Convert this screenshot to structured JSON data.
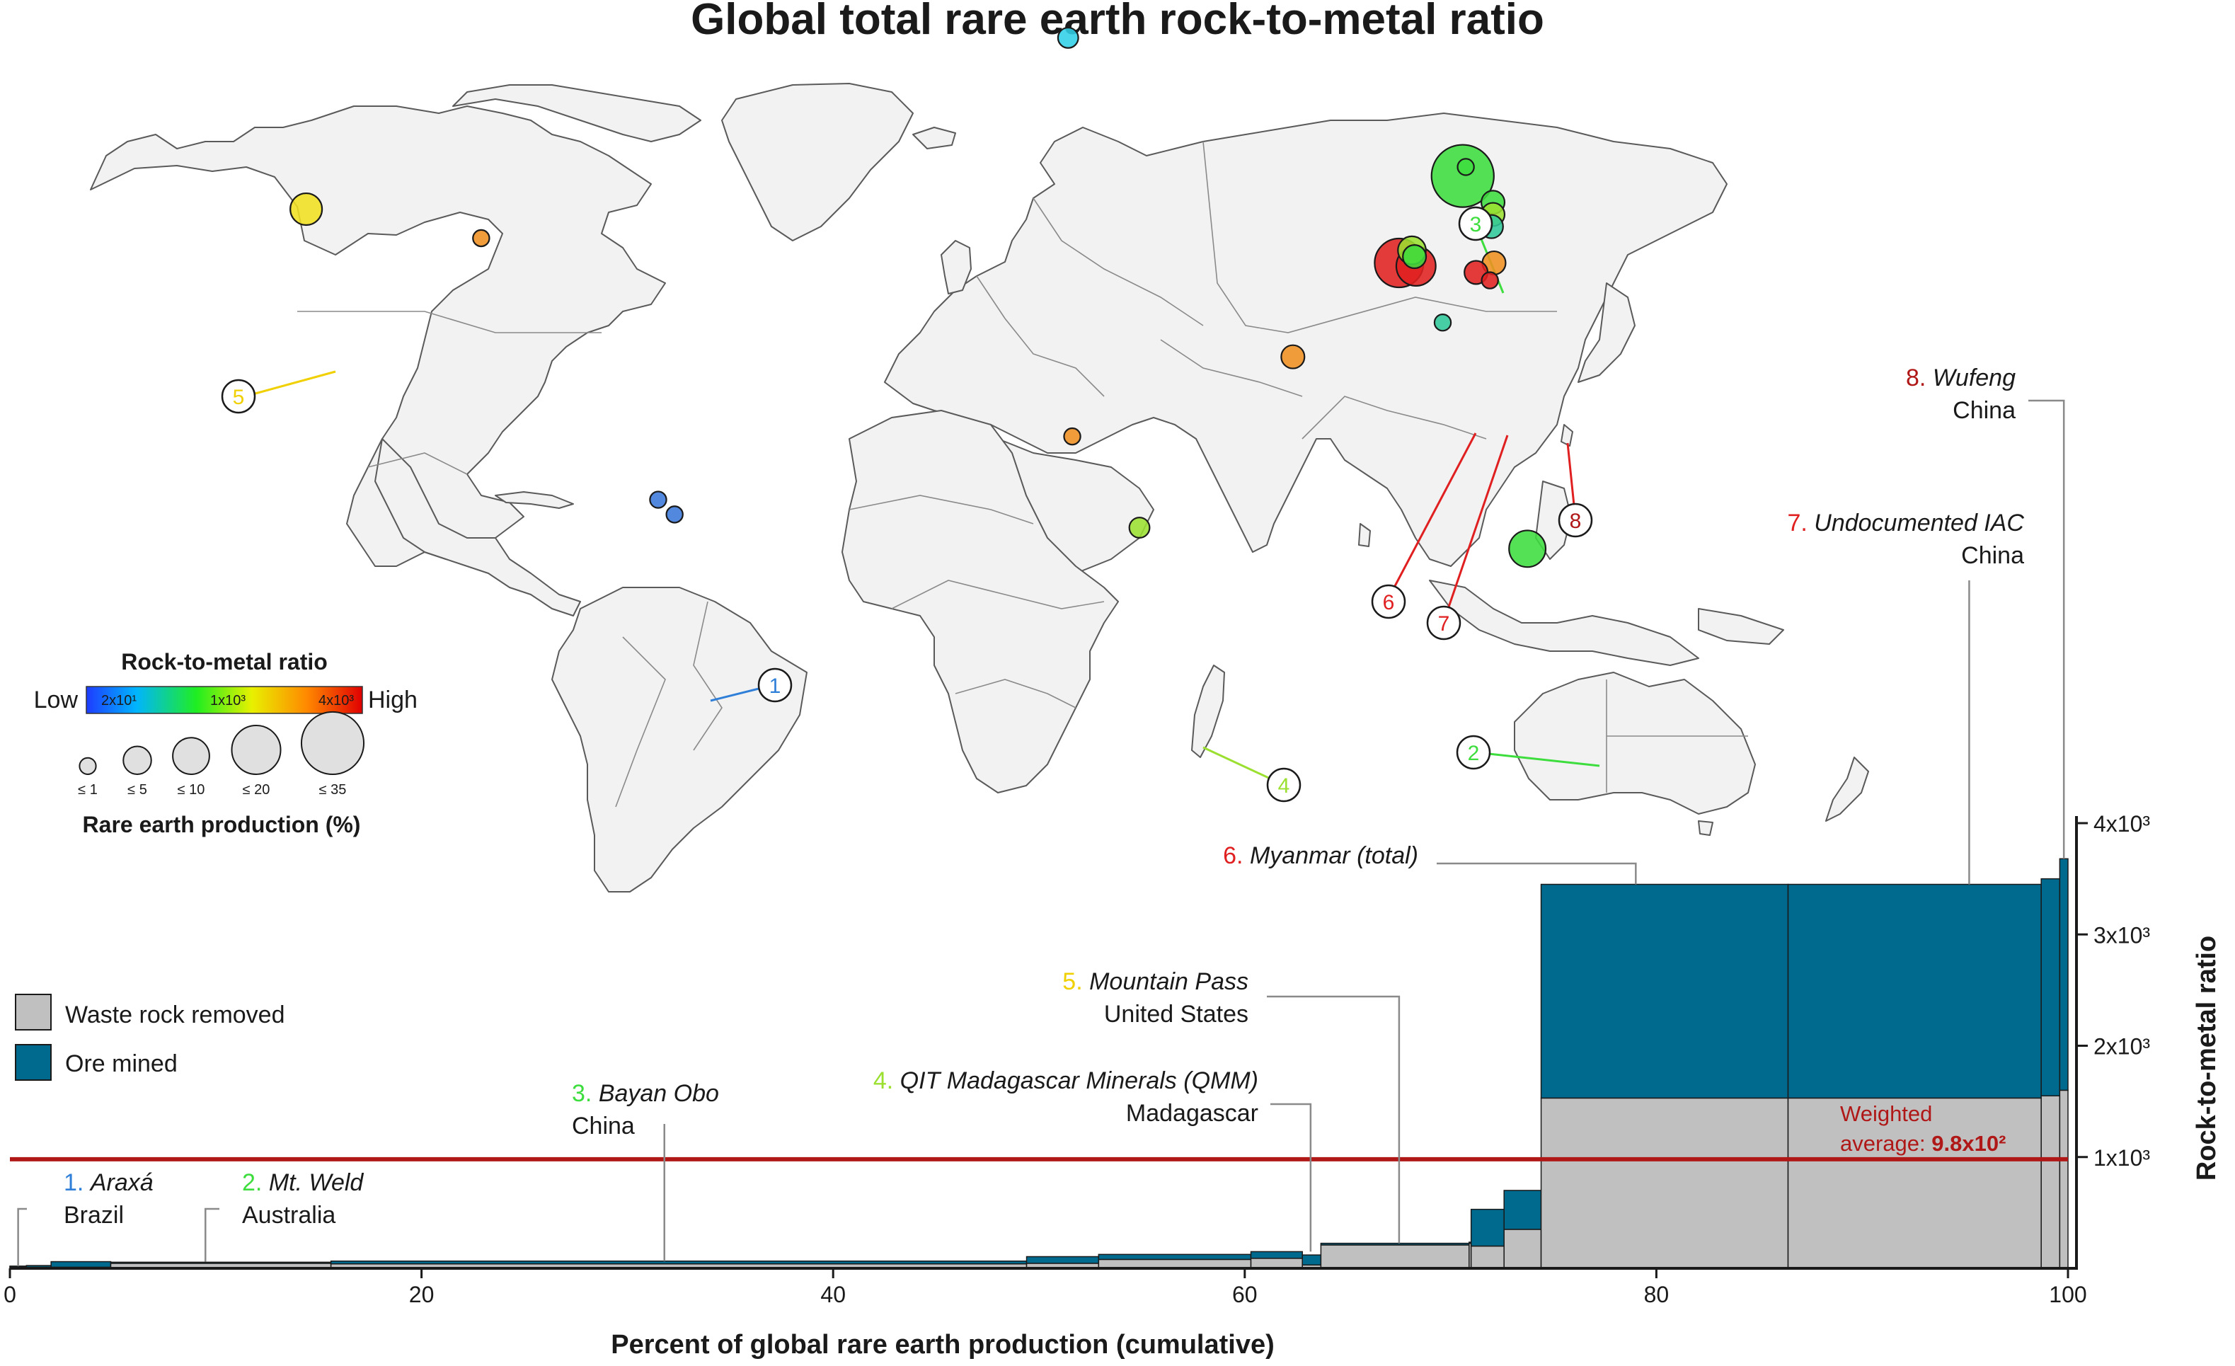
{
  "title": "Global total rare earth rock-to-metal ratio",
  "colors": {
    "ore": "#006a8e",
    "waste": "#c0c0c0",
    "average_line": "#b01818",
    "land": "#f2f2f2",
    "land_stroke": "#5a5a5a"
  },
  "colorbar": {
    "title": "Rock-to-metal ratio",
    "low_label": "Low",
    "high_label": "High",
    "ticks": [
      "2x10¹",
      "1x10³",
      "4x10³"
    ]
  },
  "size_legend": {
    "title": "Rare earth production (%)",
    "items": [
      "≤ 1",
      "≤ 5",
      "≤ 10",
      "≤ 20",
      "≤ 35"
    ],
    "sizes": [
      1,
      5,
      10,
      20,
      35
    ]
  },
  "bar_legend": {
    "waste_label": "Waste rock removed",
    "ore_label": "Ore mined"
  },
  "sites": [
    {
      "num": "1.",
      "name": "Araxá",
      "country": "Brazil",
      "color": "#2f7fd8"
    },
    {
      "num": "2.",
      "name": "Mt. Weld",
      "country": "Australia",
      "color": "#3ddd3d"
    },
    {
      "num": "3.",
      "name": "Bayan Obo",
      "country": "China",
      "color": "#3ddd3d"
    },
    {
      "num": "4.",
      "name": "QIT Madagascar Minerals (QMM)",
      "country": "Madagascar",
      "color": "#9be030"
    },
    {
      "num": "5.",
      "name": "Mountain Pass",
      "country": "United States",
      "color": "#f0d000"
    },
    {
      "num": "6.",
      "name": "Myanmar (total)",
      "country": "",
      "color": "#e02020"
    },
    {
      "num": "7.",
      "name": "Undocumented IAC",
      "country": "China",
      "color": "#e02020"
    },
    {
      "num": "8.",
      "name": "Wufeng",
      "country": "China",
      "color": "#b01818"
    }
  ],
  "map_markers": [
    {
      "id": 1,
      "lon": -46.9,
      "lat": -19.6,
      "share": 1,
      "ratio": 30,
      "color": "#3a78d8"
    },
    {
      "id": 1,
      "lon": -43.7,
      "lat": -22.4,
      "share": 1,
      "ratio": 30,
      "color": "#3a78d8"
    },
    {
      "id": 2,
      "lon": 122.5,
      "lat": -28.9,
      "share": 10,
      "ratio": 800,
      "color": "#3ddd3d"
    },
    {
      "id": 3,
      "lon": 109.9,
      "lat": 41.8,
      "share": 35,
      "ratio": 900,
      "color": "#3ddd3d"
    },
    {
      "id": 3,
      "lon": 110.5,
      "lat": 43.5,
      "share": 1,
      "ratio": 900,
      "color": "#3ddd3d"
    },
    {
      "id": 4,
      "lon": 46.9,
      "lat": -24.9,
      "share": 2,
      "ratio": 700,
      "color": "#9be030"
    },
    {
      "id": 5,
      "lon": -115.5,
      "lat": 35.5,
      "share": 7,
      "ratio": 120,
      "color": "#f0e020"
    },
    {
      "id": 0,
      "lon": -81.4,
      "lat": 30.0,
      "share": 1,
      "ratio": 1800,
      "color": "#f09020"
    },
    {
      "id": 0,
      "lon": 33.0,
      "lat": 68.0,
      "share": 2,
      "ratio": 60,
      "color": "#30d0e8"
    },
    {
      "id": 0,
      "lon": 115.8,
      "lat": 36.8,
      "share": 3,
      "ratio": 900,
      "color": "#3ddd3d"
    },
    {
      "id": 0,
      "lon": 115.8,
      "lat": 34.5,
      "share": 3,
      "ratio": 800,
      "color": "#9be030"
    },
    {
      "id": 0,
      "lon": 115.5,
      "lat": 32.2,
      "share": 3,
      "ratio": 200,
      "color": "#30c898"
    },
    {
      "id": 6,
      "lon": 97.5,
      "lat": 25.3,
      "share": 20,
      "ratio": 3400,
      "color": "#e02020"
    },
    {
      "id": 7,
      "lon": 100.8,
      "lat": 24.7,
      "share": 12,
      "ratio": 3400,
      "color": "#e02020"
    },
    {
      "id": 0,
      "lon": 100.0,
      "lat": 27.7,
      "share": 5,
      "ratio": 900,
      "color": "#9be030"
    },
    {
      "id": 0,
      "lon": 100.5,
      "lat": 26.5,
      "share": 3,
      "ratio": 900,
      "color": "#3ddd3d"
    },
    {
      "id": 0,
      "lon": 116.0,
      "lat": 25.3,
      "share": 3,
      "ratio": 1500,
      "color": "#f09020"
    },
    {
      "id": 0,
      "lon": 112.5,
      "lat": 23.5,
      "share": 3,
      "ratio": 3600,
      "color": "#e02020"
    },
    {
      "id": 8,
      "lon": 115.2,
      "lat": 22.0,
      "share": 1,
      "ratio": 3500,
      "color": "#e02020"
    },
    {
      "id": 0,
      "lon": 106.0,
      "lat": 14.0,
      "share": 1,
      "ratio": 150,
      "color": "#30c898"
    },
    {
      "id": 0,
      "lon": 76.8,
      "lat": 7.5,
      "share": 3,
      "ratio": 1800,
      "color": "#f09020"
    },
    {
      "id": 0,
      "lon": 33.8,
      "lat": -7.6,
      "share": 1,
      "ratio": 1800,
      "color": "#f09020"
    }
  ],
  "chart_data": {
    "type": "bar",
    "variant": "variable-width stacked bars (x = cumulative percent of global production)",
    "title": "Global total rare earth rock-to-metal ratio",
    "xlabel": "Percent of global rare earth production (cumulative)",
    "ylabel": "Rock-to-metal ratio",
    "xlim": [
      0,
      100
    ],
    "ylim": [
      0,
      4000
    ],
    "xticks": [
      "0",
      "20",
      "40",
      "60",
      "80",
      "100"
    ],
    "yticks": [
      "1x10³",
      "2x10³",
      "3x10³",
      "4x10³"
    ],
    "y_axis_side": "right",
    "series_names": [
      "Waste rock removed",
      "Ore mined"
    ],
    "segments": [
      {
        "x0": 0.0,
        "x1": 0.8,
        "total": 20,
        "ore": 10
      },
      {
        "x0": 0.8,
        "x1": 2.0,
        "total": 25,
        "ore": 15
      },
      {
        "x0": 2.0,
        "x1": 4.9,
        "total": 60,
        "ore": 50
      },
      {
        "x0": 4.9,
        "x1": 15.6,
        "total": 55,
        "ore": 10
      },
      {
        "x0": 15.6,
        "x1": 49.4,
        "total": 65,
        "ore": 25
      },
      {
        "x0": 49.4,
        "x1": 52.9,
        "total": 105,
        "ore": 60
      },
      {
        "x0": 52.9,
        "x1": 60.3,
        "total": 125,
        "ore": 45
      },
      {
        "x0": 60.3,
        "x1": 62.8,
        "total": 150,
        "ore": 60
      },
      {
        "x0": 62.8,
        "x1": 63.7,
        "total": 120,
        "ore": 90
      },
      {
        "x0": 63.7,
        "x1": 70.9,
        "total": 225,
        "ore": 15
      },
      {
        "x0": 70.9,
        "x1": 71.0,
        "total": 235,
        "ore": 10
      },
      {
        "x0": 71.0,
        "x1": 72.6,
        "total": 530,
        "ore": 330
      },
      {
        "x0": 72.6,
        "x1": 74.4,
        "total": 700,
        "ore": 350
      },
      {
        "x0": 74.4,
        "x1": 86.4,
        "total": 3450,
        "ore": 1920
      },
      {
        "x0": 86.4,
        "x1": 98.7,
        "total": 3450,
        "ore": 1920
      },
      {
        "x0": 98.7,
        "x1": 99.6,
        "total": 3500,
        "ore": 1950
      },
      {
        "x0": 99.6,
        "x1": 100.0,
        "total": 3680,
        "ore": 2080
      }
    ],
    "weighted_average": 980,
    "weighted_average_label_line1": "Weighted",
    "weighted_average_label_prefix": "average: ",
    "weighted_average_label_value": "9.8x10²",
    "callouts": [
      {
        "site": 1,
        "x": 0.4,
        "y": 20
      },
      {
        "site": 2,
        "x": 9.5,
        "y": 60
      },
      {
        "site": 3,
        "x": 31.8,
        "y": 65
      },
      {
        "site": 4,
        "x": 63.2,
        "y": 150
      },
      {
        "site": 5,
        "x": 67.5,
        "y": 225
      },
      {
        "site": 6,
        "x": 79.0,
        "y": 3450
      },
      {
        "site": 7,
        "x": 95.2,
        "y": 3450
      },
      {
        "site": 8,
        "x": 99.8,
        "y": 3680
      }
    ]
  }
}
